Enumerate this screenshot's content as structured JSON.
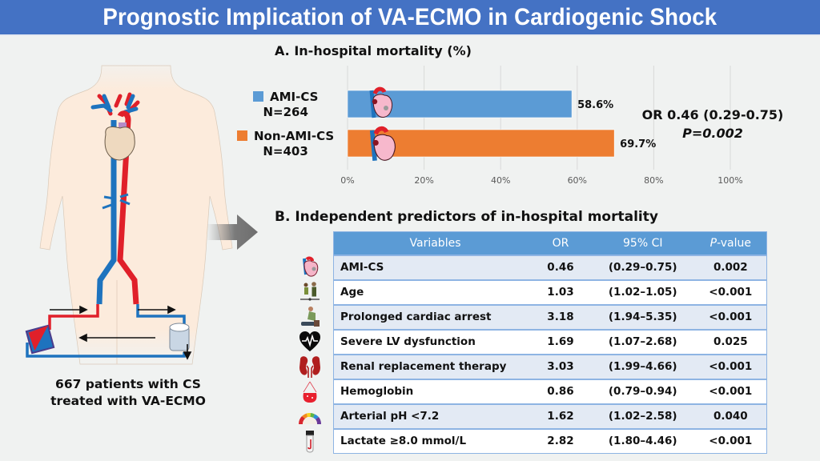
{
  "title": "Prognostic Implication of VA-ECMO in Cardiogenic Shock",
  "illustration": {
    "caption_line1": "667 patients with CS",
    "caption_line2": "treated with VA-ECMO"
  },
  "section_a": {
    "title": "A. In-hospital mortality (%)",
    "legend": [
      {
        "label": "AMI-CS",
        "n": "N=264",
        "color": "#5B9BD5"
      },
      {
        "label": "Non-AMI-CS",
        "n": "N=403",
        "color": "#ED7D31"
      }
    ],
    "or_text": "OR 0.46 (0.29-0.75)",
    "p_text": "P=0.002"
  },
  "chart_data": {
    "type": "bar",
    "orientation": "horizontal",
    "title": "A. In-hospital mortality (%)",
    "categories": [
      "AMI-CS",
      "Non-AMI-CS"
    ],
    "values": [
      58.6,
      69.7
    ],
    "data_labels": [
      "58.6%",
      "69.7%"
    ],
    "colors": [
      "#5B9BD5",
      "#ED7D31"
    ],
    "xlim": [
      0,
      100
    ],
    "xticks": [
      0,
      20,
      40,
      60,
      80,
      100
    ],
    "xtick_labels": [
      "0%",
      "20%",
      "40%",
      "60%",
      "80%",
      "100%"
    ],
    "grid": true,
    "xlabel": "",
    "ylabel": ""
  },
  "section_b": {
    "title": "B. Independent predictors of in-hospital mortality",
    "headers": {
      "variable": "Variables",
      "or": "OR",
      "ci": "95% CI",
      "p_italic": "P",
      "p_rest": "-value"
    },
    "rows": [
      {
        "variable": "AMI-CS",
        "or": "0.46",
        "ci": "(0.29–0.75)",
        "p": "0.002",
        "icon": "heart-anatomy-icon"
      },
      {
        "variable": "Age",
        "or": "1.03",
        "ci": "(1.02–1.05)",
        "p": "<0.001",
        "icon": "age-people-icon"
      },
      {
        "variable": "Prolonged cardiac arrest",
        "or": "3.18",
        "ci": "(1.94–5.35)",
        "p": "<0.001",
        "icon": "cpr-icon"
      },
      {
        "variable": "Severe LV dysfunction",
        "or": "1.69",
        "ci": "(1.07–2.68)",
        "p": "0.025",
        "icon": "heart-pulse-icon"
      },
      {
        "variable": "Renal replacement therapy",
        "or": "3.03",
        "ci": "(1.99–4.66)",
        "p": "<0.001",
        "icon": "kidney-icon"
      },
      {
        "variable": "Hemoglobin",
        "or": "0.86",
        "ci": "(0.79–0.94)",
        "p": "<0.001",
        "icon": "blood-bag-icon"
      },
      {
        "variable": "Arterial pH <7.2",
        "or": "1.62",
        "ci": "(1.02–2.58)",
        "p": "0.040",
        "icon": "ph-gauge-icon"
      },
      {
        "variable": "Lactate ≥8.0 mmol/L",
        "or": "2.82",
        "ci": "(1.80–4.46)",
        "p": "<0.001",
        "icon": "blood-tube-icon"
      }
    ]
  }
}
